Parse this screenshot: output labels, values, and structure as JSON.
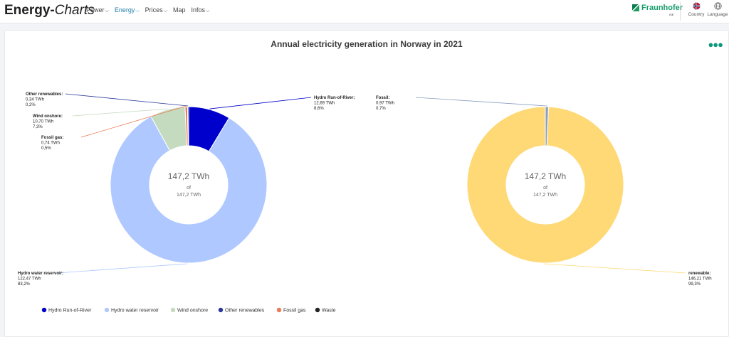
{
  "header": {
    "logo_bold": "Energy-",
    "logo_italic": "Charts",
    "nav": [
      {
        "label": "Power",
        "active": false
      },
      {
        "label": "Energy",
        "active": true
      },
      {
        "label": "Prices",
        "active": false
      },
      {
        "label": "Map",
        "active": false
      },
      {
        "label": "Infos",
        "active": false
      }
    ],
    "brand": "Fraunhofer",
    "brand_sub": "ISE",
    "country_label": "Country",
    "language_label": "Language"
  },
  "menu_icon": "more-dots-icon",
  "colors": {
    "accent": "#179c6b",
    "nav_active": "#1e7fa8"
  },
  "chart_data": {
    "type": "pie",
    "title": "Annual electricity generation in Norway in 2021",
    "unit": "TWh",
    "charts": [
      {
        "total_label": "147,2 TWh",
        "of_label": "of",
        "sub_label": "147,2 TWh",
        "slices": [
          {
            "name": "Hydro Run-of-River",
            "value": 12.69,
            "value_label": "12,69 TWh",
            "percent_label": "8,6%",
            "color": "#0000cc"
          },
          {
            "name": "Hydro water reservoir",
            "value": 122.47,
            "value_label": "122,47 TWh",
            "percent_label": "83,2%",
            "color": "#afc8ff"
          },
          {
            "name": "Wind onshore",
            "value": 10.7,
            "value_label": "10,70 TWh",
            "percent_label": "7,3%",
            "color": "#c5dbbf"
          },
          {
            "name": "Fossil gas",
            "value": 0.74,
            "value_label": "0,74 TWh",
            "percent_label": "0,5%",
            "color": "#ea7c58"
          },
          {
            "name": "Other renewables",
            "value": 0.34,
            "value_label": "0,34 TWh",
            "percent_label": "0,2%",
            "color": "#2a3a99"
          }
        ]
      },
      {
        "total_label": "147,2 TWh",
        "of_label": "of",
        "sub_label": "147,2 TWh",
        "slices": [
          {
            "name": "Fossil",
            "value": 0.97,
            "value_label": "0,97 TWh",
            "percent_label": "0,7%",
            "color": "#8a9fc0"
          },
          {
            "name": "renewable",
            "value": 146.21,
            "value_label": "146,21 TWh",
            "percent_label": "99,3%",
            "color": "#fed976"
          }
        ]
      }
    ],
    "legend": [
      {
        "name": "Hydro Run-of-River",
        "color": "#0000cc"
      },
      {
        "name": "Hydro water reservoir",
        "color": "#afc8ff"
      },
      {
        "name": "Wind onshore",
        "color": "#c5dbbf"
      },
      {
        "name": "Other renewables",
        "color": "#2a3a99"
      },
      {
        "name": "Fossil gas",
        "color": "#ea7c58"
      },
      {
        "name": "Waste",
        "color": "#222222"
      }
    ],
    "legend_position": "bottom-left"
  }
}
